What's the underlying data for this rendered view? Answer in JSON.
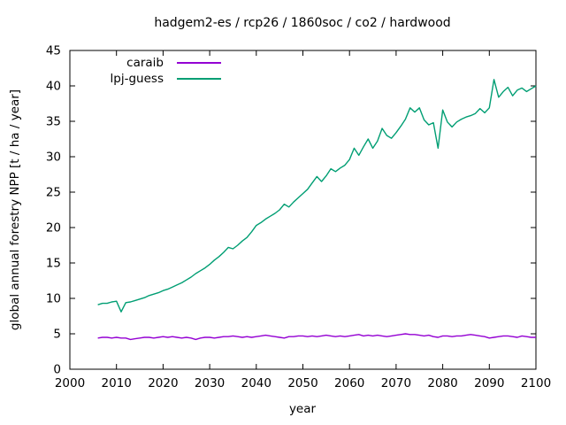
{
  "chart_data": {
    "type": "line",
    "title": "hadgem2-es / rcp26 / 1860soc / co2 / hardwood",
    "xlabel": "year",
    "ylabel": "global annual forestry NPP [t / ha / year]",
    "xlim": [
      2000,
      2100
    ],
    "ylim": [
      0,
      45
    ],
    "xticks": [
      2000,
      2010,
      2020,
      2030,
      2040,
      2050,
      2060,
      2070,
      2080,
      2090,
      2100
    ],
    "yticks": [
      0,
      5,
      10,
      15,
      20,
      25,
      30,
      35,
      40,
      45
    ],
    "grid": false,
    "legend_position": "top-left-inside",
    "background": "#ffffff",
    "axis_color": "#000000",
    "x_start": 2006,
    "x_step": 1,
    "series": [
      {
        "name": "caraib",
        "color": "#9400d3",
        "values": [
          4.4,
          4.5,
          4.5,
          4.4,
          4.5,
          4.4,
          4.4,
          4.2,
          4.3,
          4.4,
          4.5,
          4.5,
          4.4,
          4.5,
          4.6,
          4.5,
          4.6,
          4.5,
          4.4,
          4.5,
          4.4,
          4.2,
          4.4,
          4.5,
          4.5,
          4.4,
          4.5,
          4.6,
          4.6,
          4.7,
          4.6,
          4.5,
          4.6,
          4.5,
          4.6,
          4.7,
          4.8,
          4.7,
          4.6,
          4.5,
          4.4,
          4.6,
          4.6,
          4.7,
          4.7,
          4.6,
          4.7,
          4.6,
          4.7,
          4.8,
          4.7,
          4.6,
          4.7,
          4.6,
          4.7,
          4.8,
          4.9,
          4.7,
          4.8,
          4.7,
          4.8,
          4.7,
          4.6,
          4.7,
          4.8,
          4.9,
          5.0,
          4.9,
          4.9,
          4.8,
          4.7,
          4.8,
          4.6,
          4.5,
          4.7,
          4.7,
          4.6,
          4.7,
          4.7,
          4.8,
          4.9,
          4.8,
          4.7,
          4.6,
          4.4,
          4.5,
          4.6,
          4.7,
          4.7,
          4.6,
          4.5,
          4.7,
          4.6,
          4.5,
          4.5
        ]
      },
      {
        "name": "lpj-guess",
        "color": "#009e73",
        "values": [
          9.1,
          9.3,
          9.3,
          9.5,
          9.6,
          8.1,
          9.4,
          9.5,
          9.7,
          9.9,
          10.1,
          10.4,
          10.6,
          10.8,
          11.1,
          11.3,
          11.6,
          11.9,
          12.2,
          12.6,
          13.0,
          13.5,
          13.9,
          14.3,
          14.8,
          15.4,
          15.9,
          16.5,
          17.2,
          17.0,
          17.5,
          18.1,
          18.6,
          19.4,
          20.3,
          20.7,
          21.2,
          21.6,
          22.0,
          22.5,
          23.3,
          22.9,
          23.6,
          24.2,
          24.8,
          25.4,
          26.3,
          27.2,
          26.5,
          27.3,
          28.3,
          27.9,
          28.4,
          28.8,
          29.6,
          31.2,
          30.2,
          31.4,
          32.5,
          31.2,
          32.2,
          34.0,
          33.0,
          32.6,
          33.4,
          34.3,
          35.3,
          36.9,
          36.3,
          36.9,
          35.2,
          34.5,
          34.8,
          31.2,
          36.6,
          34.9,
          34.2,
          34.9,
          35.3,
          35.6,
          35.8,
          36.1,
          36.8,
          36.2,
          36.9,
          40.9,
          38.4,
          39.2,
          39.8,
          38.6,
          39.4,
          39.7,
          39.2,
          39.6,
          40.0
        ]
      }
    ]
  }
}
